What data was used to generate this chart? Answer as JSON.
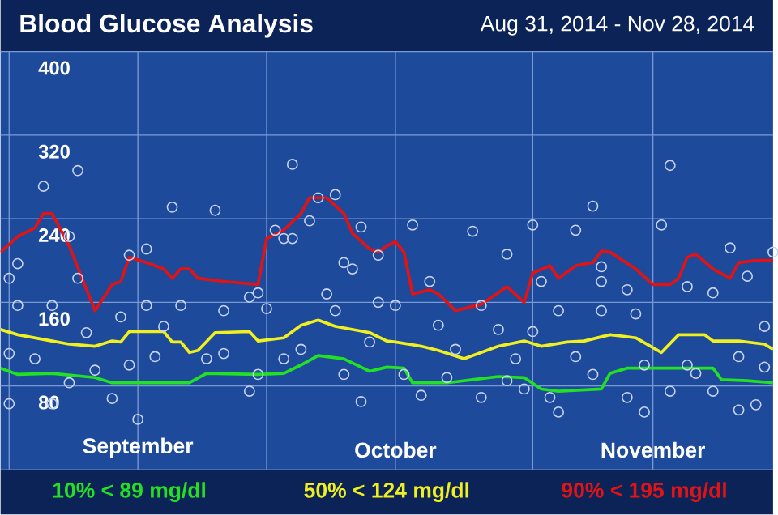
{
  "chart_data": {
    "type": "line",
    "title": "Blood Glucose Analysis",
    "subtitle": "Aug 31, 2014 - Nov 28, 2014",
    "xlim": [
      "2014-08-31",
      "2014-11-29"
    ],
    "ylim": [
      0,
      400
    ],
    "yticks": [
      80,
      160,
      240,
      320,
      400
    ],
    "xticks": [
      {
        "value": "2014-09-01",
        "label": null
      },
      {
        "value": "2014-09-16",
        "label": "September"
      },
      {
        "value": "2014-10-01",
        "label": null
      },
      {
        "value": "2014-10-16",
        "label": "October"
      },
      {
        "value": "2014-11-01",
        "label": null
      },
      {
        "value": "2014-11-15",
        "label": "November"
      }
    ],
    "grid": true,
    "legend": "bottom",
    "series": [
      {
        "type": "scatter",
        "marker": "circle",
        "color": "#c8d4f0",
        "x": [
          "2014-09-09",
          "2014-09-05",
          "2014-09-20",
          "2014-09-25",
          "2014-10-04",
          "2014-10-09",
          "2014-10-07",
          "2014-09-08",
          "2014-09-02",
          "2014-09-01",
          "2014-09-09",
          "2014-09-15",
          "2014-09-17",
          "2014-10-02",
          "2014-10-03",
          "2014-10-04",
          "2014-10-06",
          "2014-10-12",
          "2014-10-10",
          "2014-10-11",
          "2014-10-14",
          "2014-09-16",
          "2014-09-01",
          "2014-09-06",
          "2014-09-13",
          "2014-09-29",
          "2014-10-12",
          "2014-10-08",
          "2014-10-01",
          "2014-09-30",
          "2014-09-29",
          "2014-09-26",
          "2014-09-21",
          "2014-09-17",
          "2014-09-06",
          "2014-09-02",
          "2014-09-10",
          "2014-09-14",
          "2014-09-19",
          "2014-09-26",
          "2014-09-24",
          "2014-09-18",
          "2014-09-15",
          "2014-09-11",
          "2014-09-08",
          "2014-09-04",
          "2014-09-01",
          "2014-10-03",
          "2014-10-05",
          "2014-10-10",
          "2014-10-13",
          "2014-10-14",
          "2014-10-09",
          "2014-09-30",
          "2014-11-17",
          "2014-11-08",
          "2014-11-16",
          "2014-10-18",
          "2014-10-25",
          "2014-11-01",
          "2014-11-06",
          "2014-10-29",
          "2014-11-24",
          "2014-11-29",
          "2014-10-20",
          "2014-11-09",
          "2014-11-09",
          "2014-11-02",
          "2014-11-12",
          "2014-11-22",
          "2014-11-26",
          "2014-11-19",
          "2014-10-16",
          "2014-10-26",
          "2014-11-04",
          "2014-11-09",
          "2014-11-13",
          "2014-10-21",
          "2014-10-28",
          "2014-11-01",
          "2014-11-28",
          "2014-10-23",
          "2014-10-30",
          "2014-11-06",
          "2014-11-14",
          "2014-11-19",
          "2014-11-25",
          "2014-10-19",
          "2014-10-26",
          "2014-11-03",
          "2014-11-04",
          "2014-11-12",
          "2014-11-14",
          "2014-11-17",
          "2014-11-22",
          "2014-11-25",
          "2014-11-27",
          "2014-10-31",
          "2014-10-29",
          "2014-10-17",
          "2014-10-22",
          "2014-11-08",
          "2014-11-20",
          "2014-11-28"
        ],
        "values": [
          286,
          271,
          251,
          248,
          292,
          263,
          260,
          223,
          197,
          183,
          183,
          205,
          211,
          229,
          221,
          221,
          238,
          232,
          198,
          192,
          205,
          48,
          63,
          63,
          68,
          75,
          65,
          168,
          154,
          169,
          165,
          152,
          157,
          157,
          157,
          157,
          131,
          146,
          137,
          111,
          106,
          108,
          100,
          95,
          83,
          106,
          111,
          106,
          115,
          91,
          122,
          160,
          152,
          91,
          291,
          252,
          234,
          234,
          228,
          234,
          229,
          206,
          212,
          208,
          180,
          194,
          180,
          180,
          172,
          169,
          185,
          175,
          157,
          157,
          152,
          152,
          149,
          138,
          134,
          132,
          137,
          115,
          106,
          108,
          100,
          100,
          108,
          71,
          69,
          69,
          55,
          69,
          55,
          75,
          75,
          57,
          62,
          77,
          85,
          91,
          88,
          91,
          92,
          98
        ]
      },
      {
        "name": "10% < 89 mg/dl",
        "color": "#22e022",
        "x": [
          "2014-08-31",
          "2014-09-02",
          "2014-09-06",
          "2014-09-11",
          "2014-09-13",
          "2014-09-15",
          "2014-09-22",
          "2014-09-24",
          "2014-09-30",
          "2014-10-03",
          "2014-10-05",
          "2014-10-07",
          "2014-10-10",
          "2014-10-12",
          "2014-10-13",
          "2014-10-15",
          "2014-10-17",
          "2014-10-18",
          "2014-10-22",
          "2014-10-25",
          "2014-10-28",
          "2014-10-31",
          "2014-11-02",
          "2014-11-04",
          "2014-11-09",
          "2014-11-10",
          "2014-11-12",
          "2014-11-14",
          "2014-11-22",
          "2014-11-23",
          "2014-11-26",
          "2014-11-29"
        ],
        "values": [
          97,
          91,
          92,
          88,
          83,
          83,
          83,
          92,
          91,
          92,
          100,
          109,
          106,
          98,
          94,
          98,
          97,
          83,
          83,
          86,
          89,
          88,
          77,
          75,
          77,
          92,
          97,
          97,
          97,
          86,
          85,
          83
        ]
      },
      {
        "name": "50% < 124 mg/dl",
        "color": "#f0f020",
        "x": [
          "2014-08-31",
          "2014-09-02",
          "2014-09-06",
          "2014-09-08",
          "2014-09-11",
          "2014-09-13",
          "2014-09-14",
          "2014-09-15",
          "2014-09-19",
          "2014-09-20",
          "2014-09-21",
          "2014-09-22",
          "2014-09-23",
          "2014-09-25",
          "2014-09-29",
          "2014-09-30",
          "2014-10-03",
          "2014-10-05",
          "2014-10-07",
          "2014-10-09",
          "2014-10-13",
          "2014-10-15",
          "2014-10-16",
          "2014-10-19",
          "2014-10-21",
          "2014-10-24",
          "2014-10-28",
          "2014-10-31",
          "2014-11-02",
          "2014-11-05",
          "2014-11-07",
          "2014-11-10",
          "2014-11-13",
          "2014-11-16",
          "2014-11-18",
          "2014-11-21",
          "2014-11-22",
          "2014-11-25",
          "2014-11-28",
          "2014-11-29"
        ],
        "values": [
          134,
          129,
          123,
          120,
          118,
          123,
          122,
          132,
          132,
          122,
          122,
          112,
          114,
          131,
          132,
          123,
          126,
          138,
          143,
          137,
          131,
          123,
          122,
          118,
          114,
          106,
          118,
          123,
          118,
          122,
          123,
          129,
          126,
          112,
          129,
          129,
          123,
          123,
          120,
          115
        ]
      },
      {
        "name": "90% < 195 mg/dl",
        "color": "#e01414",
        "x": [
          "2014-08-31",
          "2014-09-02",
          "2014-09-04",
          "2014-09-05",
          "2014-09-06",
          "2014-09-08",
          "2014-09-11",
          "2014-09-13",
          "2014-09-14",
          "2014-09-15",
          "2014-09-17",
          "2014-09-19",
          "2014-09-20",
          "2014-09-21",
          "2014-09-22",
          "2014-09-23",
          "2014-09-26",
          "2014-09-30",
          "2014-10-01",
          "2014-10-03",
          "2014-10-05",
          "2014-10-06",
          "2014-10-08",
          "2014-10-10",
          "2014-10-11",
          "2014-10-13",
          "2014-10-14",
          "2014-10-15",
          "2014-10-16",
          "2014-10-17",
          "2014-10-18",
          "2014-10-20",
          "2014-10-21",
          "2014-10-23",
          "2014-10-26",
          "2014-10-29",
          "2014-10-31",
          "2014-11-01",
          "2014-11-03",
          "2014-11-04",
          "2014-11-06",
          "2014-11-08",
          "2014-11-09",
          "2014-11-10",
          "2014-11-13",
          "2014-11-15",
          "2014-11-17",
          "2014-11-18",
          "2014-11-19",
          "2014-11-20",
          "2014-11-22",
          "2014-11-24",
          "2014-11-25",
          "2014-11-27",
          "2014-11-29"
        ],
        "values": [
          208,
          223,
          231,
          245,
          245,
          214,
          152,
          177,
          180,
          203,
          198,
          192,
          183,
          192,
          192,
          183,
          180,
          177,
          221,
          229,
          245,
          260,
          260,
          245,
          226,
          211,
          208,
          214,
          218,
          208,
          168,
          172,
          168,
          152,
          158,
          175,
          160,
          188,
          195,
          183,
          195,
          198,
          209,
          208,
          192,
          177,
          177,
          183,
          203,
          206,
          192,
          183,
          198,
          200,
          200
        ]
      }
    ]
  }
}
